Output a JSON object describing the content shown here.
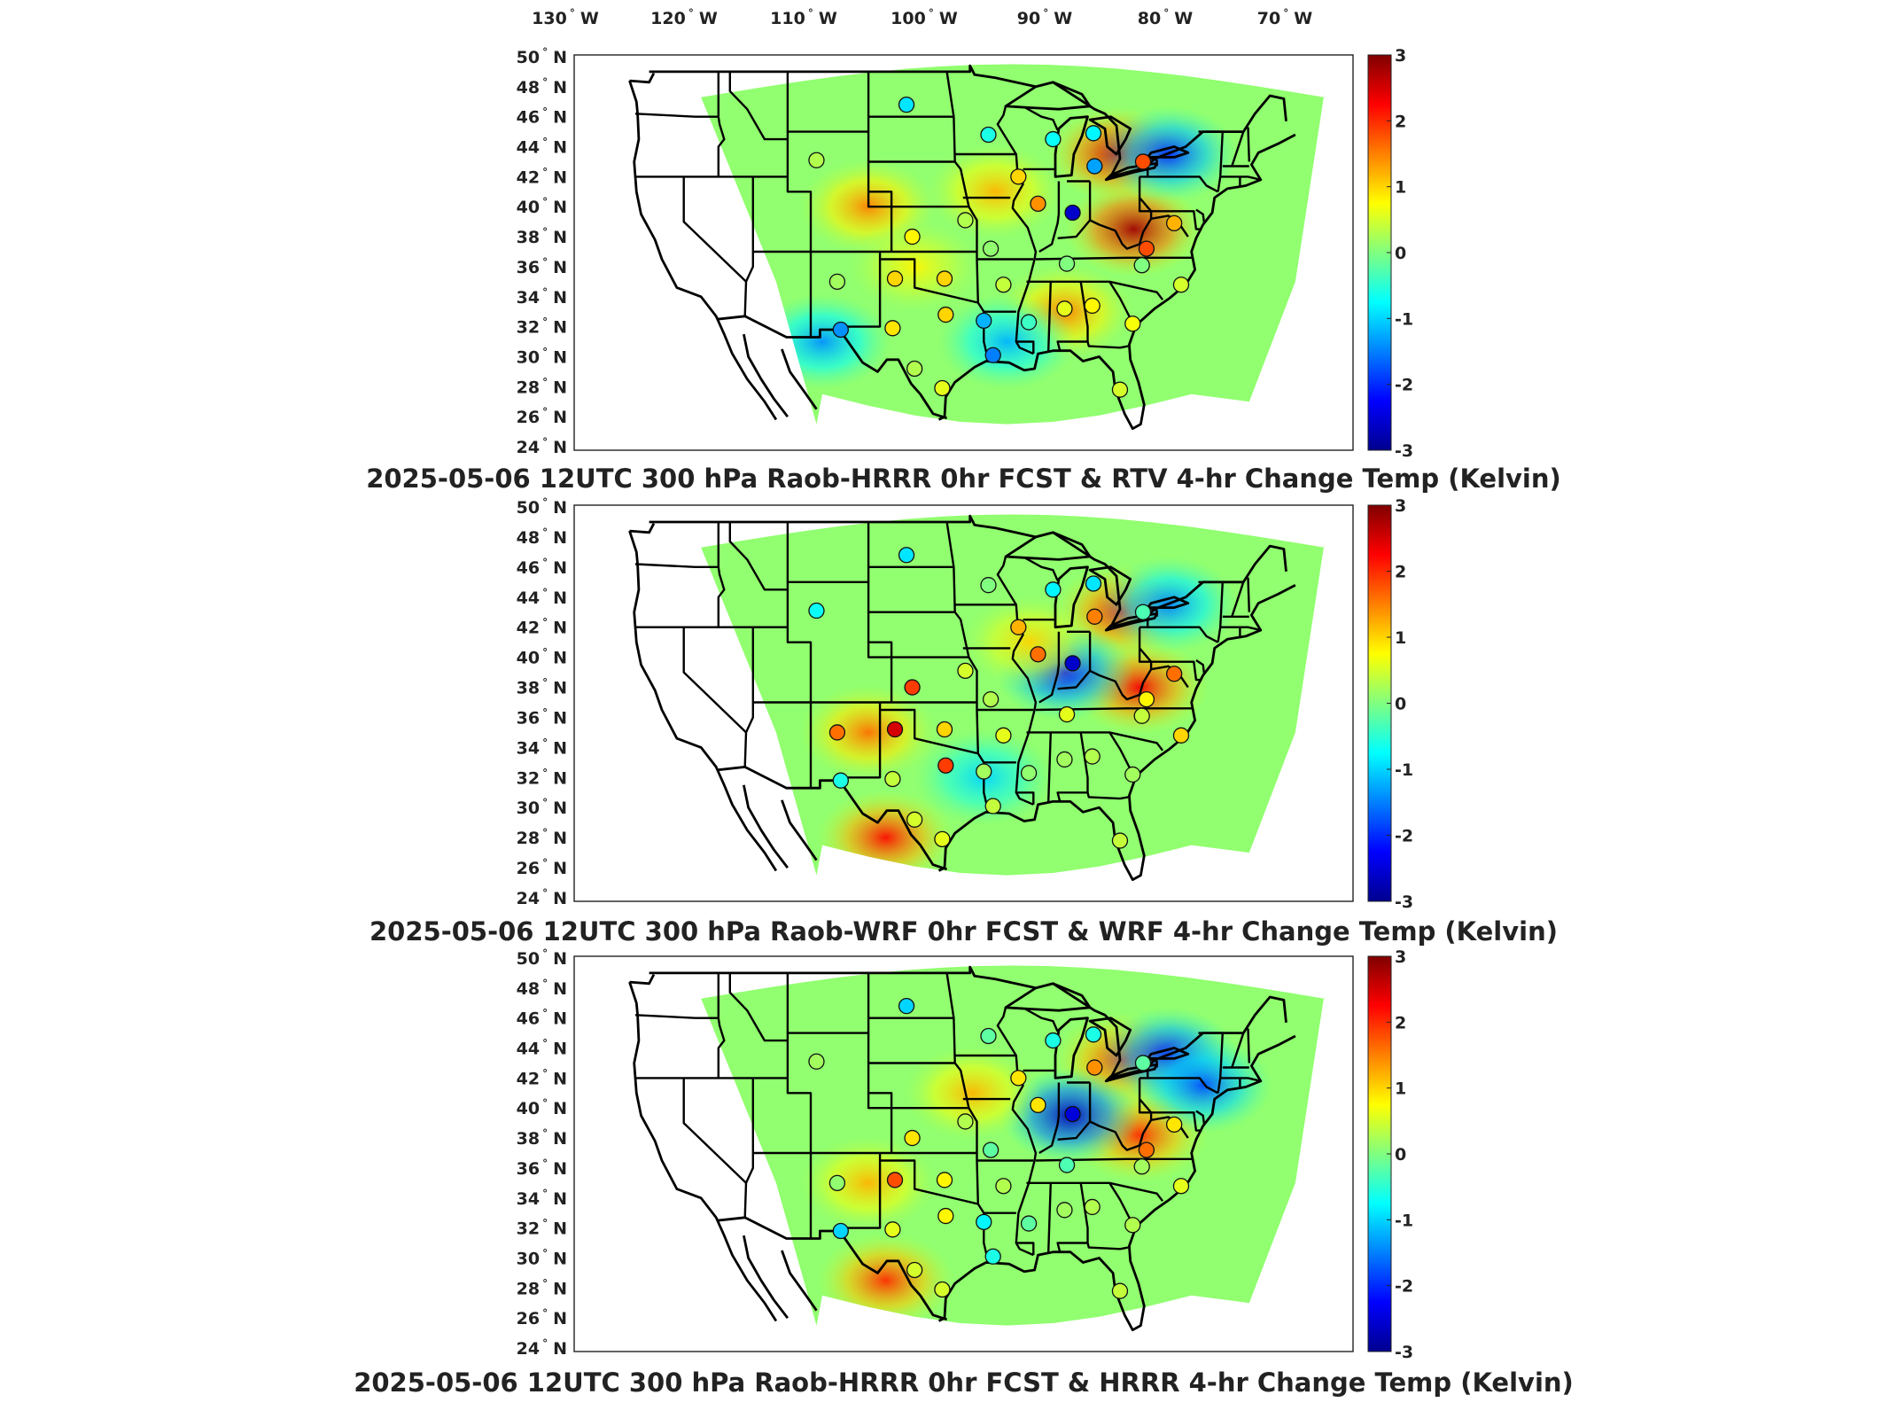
{
  "lon_labels": [
    {
      "deg": "130",
      "dir": "W"
    },
    {
      "deg": "120",
      "dir": "W"
    },
    {
      "deg": "110",
      "dir": "W"
    },
    {
      "deg": "100",
      "dir": "W"
    },
    {
      "deg": "90",
      "dir": "W"
    },
    {
      "deg": "80",
      "dir": "W"
    },
    {
      "deg": "70",
      "dir": "W"
    }
  ],
  "lat_labels": [
    "50",
    "48",
    "46",
    "44",
    "42",
    "40",
    "38",
    "36",
    "34",
    "32",
    "30",
    "28",
    "26",
    "24"
  ],
  "lat_dir": "N",
  "colorbar": {
    "ticks": [
      "3",
      "2",
      "1",
      "0",
      "-1",
      "-2",
      "-3"
    ],
    "range": [
      -3,
      3
    ],
    "colormap": [
      "#00008f",
      "#0000ff",
      "#0080ff",
      "#00ffff",
      "#80ff80",
      "#ffff00",
      "#ff8000",
      "#ff0000",
      "#800000"
    ]
  },
  "panels": [
    {
      "title": "2025-05-06 12UTC 300 hPa Raob-HRRR 0hr FCST & RTV 4-hr Change Temp (Kelvin)",
      "field": [
        {
          "lon": -81,
          "lat": 38.5,
          "value": 2.8
        },
        {
          "lon": -82.5,
          "lat": 43.5,
          "value": 2.5
        },
        {
          "lon": -104,
          "lat": 40,
          "value": 1.5
        },
        {
          "lon": -93,
          "lat": 41,
          "value": 1.2
        },
        {
          "lon": -87,
          "lat": 33,
          "value": 1.5
        },
        {
          "lon": -78,
          "lat": 43.5,
          "value": -2.0
        },
        {
          "lon": -92,
          "lat": 31,
          "value": -1.2
        },
        {
          "lon": -108,
          "lat": 31,
          "value": -1.4
        },
        {
          "lon": -100,
          "lat": 36,
          "value": 0.8
        }
      ],
      "sites": [
        {
          "lon": -100.7,
          "lat": 46.8,
          "value": -0.9
        },
        {
          "lon": -108.5,
          "lat": 43.1,
          "value": 0.3
        },
        {
          "lon": -93.6,
          "lat": 44.8,
          "value": -0.6
        },
        {
          "lon": -88,
          "lat": 44.5,
          "value": -0.7
        },
        {
          "lon": -84.5,
          "lat": 44.9,
          "value": -0.8
        },
        {
          "lon": -84.4,
          "lat": 42.7,
          "value": -1.3
        },
        {
          "lon": -80.2,
          "lat": 43.0,
          "value": 1.8
        },
        {
          "lon": -86.3,
          "lat": 39.6,
          "value": -2.6
        },
        {
          "lon": -91.0,
          "lat": 42.0,
          "value": 1.0
        },
        {
          "lon": -89.3,
          "lat": 40.2,
          "value": 1.4
        },
        {
          "lon": -95.6,
          "lat": 39.1,
          "value": 0.3
        },
        {
          "lon": -100.2,
          "lat": 38.0,
          "value": 0.8
        },
        {
          "lon": -93.4,
          "lat": 37.2,
          "value": 0.1
        },
        {
          "lon": -106.7,
          "lat": 35.0,
          "value": 0.2
        },
        {
          "lon": -101.7,
          "lat": 35.2,
          "value": 1.0
        },
        {
          "lon": -97.4,
          "lat": 35.2,
          "value": 1.0
        },
        {
          "lon": -92.3,
          "lat": 34.8,
          "value": 0.4
        },
        {
          "lon": -86.8,
          "lat": 36.2,
          "value": 0.0
        },
        {
          "lon": -79.9,
          "lat": 37.2,
          "value": 1.8
        },
        {
          "lon": -77.5,
          "lat": 38.9,
          "value": 1.2
        },
        {
          "lon": -80.3,
          "lat": 36.1,
          "value": 0.0
        },
        {
          "lon": -76.9,
          "lat": 34.8,
          "value": 0.5
        },
        {
          "lon": -84.6,
          "lat": 33.4,
          "value": 0.8
        },
        {
          "lon": -87.0,
          "lat": 33.2,
          "value": 0.6
        },
        {
          "lon": -90.1,
          "lat": 32.3,
          "value": -0.4
        },
        {
          "lon": -81.1,
          "lat": 32.2,
          "value": 0.7
        },
        {
          "lon": -97.3,
          "lat": 32.8,
          "value": 1.0
        },
        {
          "lon": -94.0,
          "lat": 32.4,
          "value": -1.2
        },
        {
          "lon": -101.9,
          "lat": 31.9,
          "value": 0.9
        },
        {
          "lon": -106.4,
          "lat": 31.8,
          "value": -1.4
        },
        {
          "lon": -100.0,
          "lat": 29.2,
          "value": 0.3
        },
        {
          "lon": -93.2,
          "lat": 30.1,
          "value": -1.5
        },
        {
          "lon": -97.6,
          "lat": 27.9,
          "value": 0.6
        },
        {
          "lon": -82.2,
          "lat": 27.8,
          "value": 0.5
        }
      ]
    },
    {
      "title": "2025-05-06 12UTC 300 hPa Raob-WRF 0hr FCST & WRF 4-hr Change Temp (Kelvin)",
      "field": [
        {
          "lon": -80.5,
          "lat": 38,
          "value": 2.3
        },
        {
          "lon": -82,
          "lat": 43,
          "value": 2.2
        },
        {
          "lon": -104,
          "lat": 35,
          "value": 1.6
        },
        {
          "lon": -102.5,
          "lat": 28,
          "value": 2.2
        },
        {
          "lon": -87,
          "lat": 39,
          "value": -2.2
        },
        {
          "lon": -78,
          "lat": 43.5,
          "value": -1.5
        },
        {
          "lon": -94,
          "lat": 32,
          "value": -1.0
        },
        {
          "lon": -90,
          "lat": 41,
          "value": 1.0
        }
      ],
      "sites": [
        {
          "lon": -100.7,
          "lat": 46.8,
          "value": -0.9
        },
        {
          "lon": -108.5,
          "lat": 43.1,
          "value": -0.7
        },
        {
          "lon": -93.6,
          "lat": 44.8,
          "value": 0.0
        },
        {
          "lon": -88,
          "lat": 44.5,
          "value": -0.8
        },
        {
          "lon": -84.5,
          "lat": 44.9,
          "value": -0.9
        },
        {
          "lon": -84.4,
          "lat": 42.7,
          "value": 1.5
        },
        {
          "lon": -80.2,
          "lat": 43.0,
          "value": -0.3
        },
        {
          "lon": -86.3,
          "lat": 39.6,
          "value": -2.6
        },
        {
          "lon": -91.0,
          "lat": 42.0,
          "value": 1.2
        },
        {
          "lon": -89.3,
          "lat": 40.2,
          "value": 1.6
        },
        {
          "lon": -95.6,
          "lat": 39.1,
          "value": 0.5
        },
        {
          "lon": -100.2,
          "lat": 38.0,
          "value": 1.9
        },
        {
          "lon": -93.4,
          "lat": 37.2,
          "value": 0.3
        },
        {
          "lon": -106.7,
          "lat": 35.0,
          "value": 1.6
        },
        {
          "lon": -101.7,
          "lat": 35.2,
          "value": 2.5
        },
        {
          "lon": -97.4,
          "lat": 35.2,
          "value": 1.0
        },
        {
          "lon": -92.3,
          "lat": 34.8,
          "value": 0.6
        },
        {
          "lon": -86.8,
          "lat": 36.2,
          "value": 0.6
        },
        {
          "lon": -79.9,
          "lat": 37.2,
          "value": 0.8
        },
        {
          "lon": -77.5,
          "lat": 38.9,
          "value": 1.6
        },
        {
          "lon": -80.3,
          "lat": 36.1,
          "value": 0.4
        },
        {
          "lon": -76.9,
          "lat": 34.8,
          "value": 1.0
        },
        {
          "lon": -84.6,
          "lat": 33.4,
          "value": 0.3
        },
        {
          "lon": -87.0,
          "lat": 33.2,
          "value": 0.2
        },
        {
          "lon": -90.1,
          "lat": 32.3,
          "value": 0.1
        },
        {
          "lon": -81.1,
          "lat": 32.2,
          "value": 0.2
        },
        {
          "lon": -97.3,
          "lat": 32.8,
          "value": 1.9
        },
        {
          "lon": -94.0,
          "lat": 32.4,
          "value": 0.2
        },
        {
          "lon": -101.9,
          "lat": 31.9,
          "value": 0.4
        },
        {
          "lon": -106.4,
          "lat": 31.8,
          "value": -0.6
        },
        {
          "lon": -100.0,
          "lat": 29.2,
          "value": 0.5
        },
        {
          "lon": -93.2,
          "lat": 30.1,
          "value": 0.4
        },
        {
          "lon": -97.6,
          "lat": 27.9,
          "value": 0.6
        },
        {
          "lon": -82.2,
          "lat": 27.8,
          "value": 0.4
        }
      ]
    },
    {
      "title": "2025-05-06 12UTC 300 hPa Raob-HRRR 0hr FCST & HRRR 4-hr Change Temp (Kelvin)",
      "field": [
        {
          "lon": -80.5,
          "lat": 38.2,
          "value": 2.0
        },
        {
          "lon": -82,
          "lat": 43.2,
          "value": 2.0
        },
        {
          "lon": -104,
          "lat": 35,
          "value": 1.2
        },
        {
          "lon": -102.5,
          "lat": 28.5,
          "value": 2.0
        },
        {
          "lon": -86.5,
          "lat": 39.5,
          "value": -2.7
        },
        {
          "lon": -78,
          "lat": 43.5,
          "value": -2.2
        },
        {
          "lon": -75,
          "lat": 41.5,
          "value": -1.8
        },
        {
          "lon": -95,
          "lat": 41,
          "value": 1.2
        }
      ],
      "sites": [
        {
          "lon": -100.7,
          "lat": 46.8,
          "value": -1.0
        },
        {
          "lon": -108.5,
          "lat": 43.1,
          "value": 0.2
        },
        {
          "lon": -93.6,
          "lat": 44.8,
          "value": -0.2
        },
        {
          "lon": -88,
          "lat": 44.5,
          "value": -0.6
        },
        {
          "lon": -84.5,
          "lat": 44.9,
          "value": -0.6
        },
        {
          "lon": -84.4,
          "lat": 42.7,
          "value": 1.4
        },
        {
          "lon": -80.2,
          "lat": 43.0,
          "value": -0.2
        },
        {
          "lon": -86.3,
          "lat": 39.6,
          "value": -2.5
        },
        {
          "lon": -91.0,
          "lat": 42.0,
          "value": 0.9
        },
        {
          "lon": -89.3,
          "lat": 40.2,
          "value": 0.9
        },
        {
          "lon": -95.6,
          "lat": 39.1,
          "value": 0.3
        },
        {
          "lon": -100.2,
          "lat": 38.0,
          "value": 0.9
        },
        {
          "lon": -93.4,
          "lat": 37.2,
          "value": -0.2
        },
        {
          "lon": -106.7,
          "lat": 35.0,
          "value": 0.1
        },
        {
          "lon": -101.7,
          "lat": 35.2,
          "value": 1.8
        },
        {
          "lon": -97.4,
          "lat": 35.2,
          "value": 0.8
        },
        {
          "lon": -92.3,
          "lat": 34.8,
          "value": 0.3
        },
        {
          "lon": -86.8,
          "lat": 36.2,
          "value": -0.3
        },
        {
          "lon": -79.9,
          "lat": 37.2,
          "value": 1.6
        },
        {
          "lon": -77.5,
          "lat": 38.9,
          "value": 0.9
        },
        {
          "lon": -80.3,
          "lat": 36.1,
          "value": 0.2
        },
        {
          "lon": -76.9,
          "lat": 34.8,
          "value": 0.6
        },
        {
          "lon": -84.6,
          "lat": 33.4,
          "value": 0.3
        },
        {
          "lon": -87.0,
          "lat": 33.2,
          "value": 0.2
        },
        {
          "lon": -90.1,
          "lat": 32.3,
          "value": -0.2
        },
        {
          "lon": -81.1,
          "lat": 32.2,
          "value": 0.3
        },
        {
          "lon": -97.3,
          "lat": 32.8,
          "value": 0.8
        },
        {
          "lon": -94.0,
          "lat": 32.4,
          "value": -0.8
        },
        {
          "lon": -101.9,
          "lat": 31.9,
          "value": 0.6
        },
        {
          "lon": -106.4,
          "lat": 31.8,
          "value": -1.0
        },
        {
          "lon": -100.0,
          "lat": 29.2,
          "value": 0.5
        },
        {
          "lon": -93.2,
          "lat": 30.1,
          "value": -0.6
        },
        {
          "lon": -97.6,
          "lat": 27.9,
          "value": 0.5
        },
        {
          "lon": -82.2,
          "lat": 27.8,
          "value": 0.4
        }
      ]
    }
  ]
}
